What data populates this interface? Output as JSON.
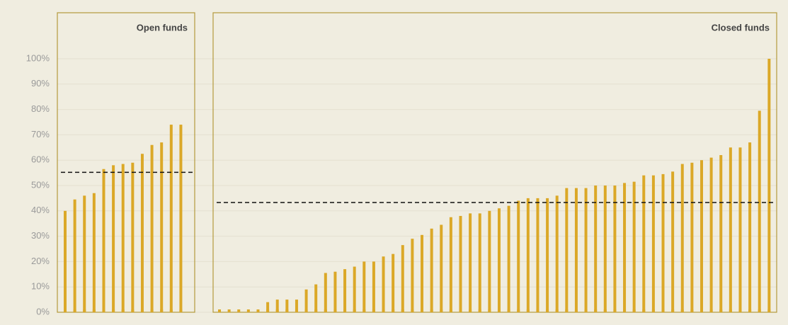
{
  "chart_data": [
    {
      "type": "bar",
      "title": "Open funds",
      "color": "#dba827",
      "values": [
        40,
        44.5,
        46,
        47,
        56.5,
        58,
        58.5,
        59,
        62.5,
        66,
        67,
        74,
        74
      ],
      "reference_line": 55.2,
      "ylim": [
        0,
        100
      ],
      "yticks": [
        {
          "value": 0,
          "label": "0%"
        },
        {
          "value": 10,
          "label": "10%"
        },
        {
          "value": 20,
          "label": "20%"
        },
        {
          "value": 30,
          "label": "30%"
        },
        {
          "value": 40,
          "label": "40%"
        },
        {
          "value": 50,
          "label": "50%"
        },
        {
          "value": 60,
          "label": "60%"
        },
        {
          "value": 70,
          "label": "70%"
        },
        {
          "value": 80,
          "label": "80%"
        },
        {
          "value": 90,
          "label": "90%"
        },
        {
          "value": 100,
          "label": "100%"
        }
      ],
      "grid": true
    },
    {
      "type": "bar",
      "title": "Closed funds",
      "color": "#dba827",
      "values": [
        0,
        0,
        0,
        0,
        0.5,
        4,
        5,
        5,
        5,
        9,
        11,
        15.5,
        16,
        17,
        18,
        20,
        20,
        22,
        23,
        26.5,
        29,
        30.5,
        33,
        34.5,
        37.5,
        38,
        39,
        39,
        40,
        41,
        42,
        44,
        45,
        45,
        45,
        46,
        49,
        49,
        49,
        50,
        50,
        50,
        51,
        51.5,
        54,
        54,
        54.5,
        55.5,
        58.5,
        59,
        60,
        61,
        62,
        65,
        65,
        67,
        79.5,
        100
      ],
      "reference_line": 43.3,
      "ylim": [
        0,
        100
      ]
    }
  ]
}
